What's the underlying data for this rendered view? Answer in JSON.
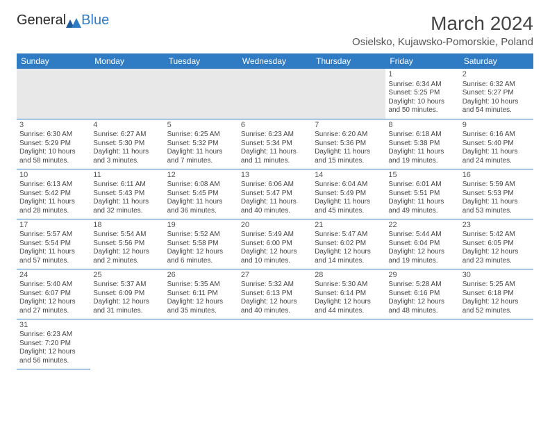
{
  "logo": {
    "part1": "General",
    "part2": "Blue"
  },
  "title": "March 2024",
  "location": "Osielsko, Kujawsko-Pomorskie, Poland",
  "header_bg": "#2f7bc4",
  "header_fg": "#ffffff",
  "columns": [
    "Sunday",
    "Monday",
    "Tuesday",
    "Wednesday",
    "Thursday",
    "Friday",
    "Saturday"
  ],
  "weeks": [
    [
      null,
      null,
      null,
      null,
      null,
      {
        "n": "1",
        "sr": "Sunrise: 6:34 AM",
        "ss": "Sunset: 5:25 PM",
        "d1": "Daylight: 10 hours",
        "d2": "and 50 minutes."
      },
      {
        "n": "2",
        "sr": "Sunrise: 6:32 AM",
        "ss": "Sunset: 5:27 PM",
        "d1": "Daylight: 10 hours",
        "d2": "and 54 minutes."
      }
    ],
    [
      {
        "n": "3",
        "sr": "Sunrise: 6:30 AM",
        "ss": "Sunset: 5:29 PM",
        "d1": "Daylight: 10 hours",
        "d2": "and 58 minutes."
      },
      {
        "n": "4",
        "sr": "Sunrise: 6:27 AM",
        "ss": "Sunset: 5:30 PM",
        "d1": "Daylight: 11 hours",
        "d2": "and 3 minutes."
      },
      {
        "n": "5",
        "sr": "Sunrise: 6:25 AM",
        "ss": "Sunset: 5:32 PM",
        "d1": "Daylight: 11 hours",
        "d2": "and 7 minutes."
      },
      {
        "n": "6",
        "sr": "Sunrise: 6:23 AM",
        "ss": "Sunset: 5:34 PM",
        "d1": "Daylight: 11 hours",
        "d2": "and 11 minutes."
      },
      {
        "n": "7",
        "sr": "Sunrise: 6:20 AM",
        "ss": "Sunset: 5:36 PM",
        "d1": "Daylight: 11 hours",
        "d2": "and 15 minutes."
      },
      {
        "n": "8",
        "sr": "Sunrise: 6:18 AM",
        "ss": "Sunset: 5:38 PM",
        "d1": "Daylight: 11 hours",
        "d2": "and 19 minutes."
      },
      {
        "n": "9",
        "sr": "Sunrise: 6:16 AM",
        "ss": "Sunset: 5:40 PM",
        "d1": "Daylight: 11 hours",
        "d2": "and 24 minutes."
      }
    ],
    [
      {
        "n": "10",
        "sr": "Sunrise: 6:13 AM",
        "ss": "Sunset: 5:42 PM",
        "d1": "Daylight: 11 hours",
        "d2": "and 28 minutes."
      },
      {
        "n": "11",
        "sr": "Sunrise: 6:11 AM",
        "ss": "Sunset: 5:43 PM",
        "d1": "Daylight: 11 hours",
        "d2": "and 32 minutes."
      },
      {
        "n": "12",
        "sr": "Sunrise: 6:08 AM",
        "ss": "Sunset: 5:45 PM",
        "d1": "Daylight: 11 hours",
        "d2": "and 36 minutes."
      },
      {
        "n": "13",
        "sr": "Sunrise: 6:06 AM",
        "ss": "Sunset: 5:47 PM",
        "d1": "Daylight: 11 hours",
        "d2": "and 40 minutes."
      },
      {
        "n": "14",
        "sr": "Sunrise: 6:04 AM",
        "ss": "Sunset: 5:49 PM",
        "d1": "Daylight: 11 hours",
        "d2": "and 45 minutes."
      },
      {
        "n": "15",
        "sr": "Sunrise: 6:01 AM",
        "ss": "Sunset: 5:51 PM",
        "d1": "Daylight: 11 hours",
        "d2": "and 49 minutes."
      },
      {
        "n": "16",
        "sr": "Sunrise: 5:59 AM",
        "ss": "Sunset: 5:53 PM",
        "d1": "Daylight: 11 hours",
        "d2": "and 53 minutes."
      }
    ],
    [
      {
        "n": "17",
        "sr": "Sunrise: 5:57 AM",
        "ss": "Sunset: 5:54 PM",
        "d1": "Daylight: 11 hours",
        "d2": "and 57 minutes."
      },
      {
        "n": "18",
        "sr": "Sunrise: 5:54 AM",
        "ss": "Sunset: 5:56 PM",
        "d1": "Daylight: 12 hours",
        "d2": "and 2 minutes."
      },
      {
        "n": "19",
        "sr": "Sunrise: 5:52 AM",
        "ss": "Sunset: 5:58 PM",
        "d1": "Daylight: 12 hours",
        "d2": "and 6 minutes."
      },
      {
        "n": "20",
        "sr": "Sunrise: 5:49 AM",
        "ss": "Sunset: 6:00 PM",
        "d1": "Daylight: 12 hours",
        "d2": "and 10 minutes."
      },
      {
        "n": "21",
        "sr": "Sunrise: 5:47 AM",
        "ss": "Sunset: 6:02 PM",
        "d1": "Daylight: 12 hours",
        "d2": "and 14 minutes."
      },
      {
        "n": "22",
        "sr": "Sunrise: 5:44 AM",
        "ss": "Sunset: 6:04 PM",
        "d1": "Daylight: 12 hours",
        "d2": "and 19 minutes."
      },
      {
        "n": "23",
        "sr": "Sunrise: 5:42 AM",
        "ss": "Sunset: 6:05 PM",
        "d1": "Daylight: 12 hours",
        "d2": "and 23 minutes."
      }
    ],
    [
      {
        "n": "24",
        "sr": "Sunrise: 5:40 AM",
        "ss": "Sunset: 6:07 PM",
        "d1": "Daylight: 12 hours",
        "d2": "and 27 minutes."
      },
      {
        "n": "25",
        "sr": "Sunrise: 5:37 AM",
        "ss": "Sunset: 6:09 PM",
        "d1": "Daylight: 12 hours",
        "d2": "and 31 minutes."
      },
      {
        "n": "26",
        "sr": "Sunrise: 5:35 AM",
        "ss": "Sunset: 6:11 PM",
        "d1": "Daylight: 12 hours",
        "d2": "and 35 minutes."
      },
      {
        "n": "27",
        "sr": "Sunrise: 5:32 AM",
        "ss": "Sunset: 6:13 PM",
        "d1": "Daylight: 12 hours",
        "d2": "and 40 minutes."
      },
      {
        "n": "28",
        "sr": "Sunrise: 5:30 AM",
        "ss": "Sunset: 6:14 PM",
        "d1": "Daylight: 12 hours",
        "d2": "and 44 minutes."
      },
      {
        "n": "29",
        "sr": "Sunrise: 5:28 AM",
        "ss": "Sunset: 6:16 PM",
        "d1": "Daylight: 12 hours",
        "d2": "and 48 minutes."
      },
      {
        "n": "30",
        "sr": "Sunrise: 5:25 AM",
        "ss": "Sunset: 6:18 PM",
        "d1": "Daylight: 12 hours",
        "d2": "and 52 minutes."
      }
    ],
    [
      {
        "n": "31",
        "sr": "Sunrise: 6:23 AM",
        "ss": "Sunset: 7:20 PM",
        "d1": "Daylight: 12 hours",
        "d2": "and 56 minutes."
      },
      null,
      null,
      null,
      null,
      null,
      null
    ]
  ]
}
